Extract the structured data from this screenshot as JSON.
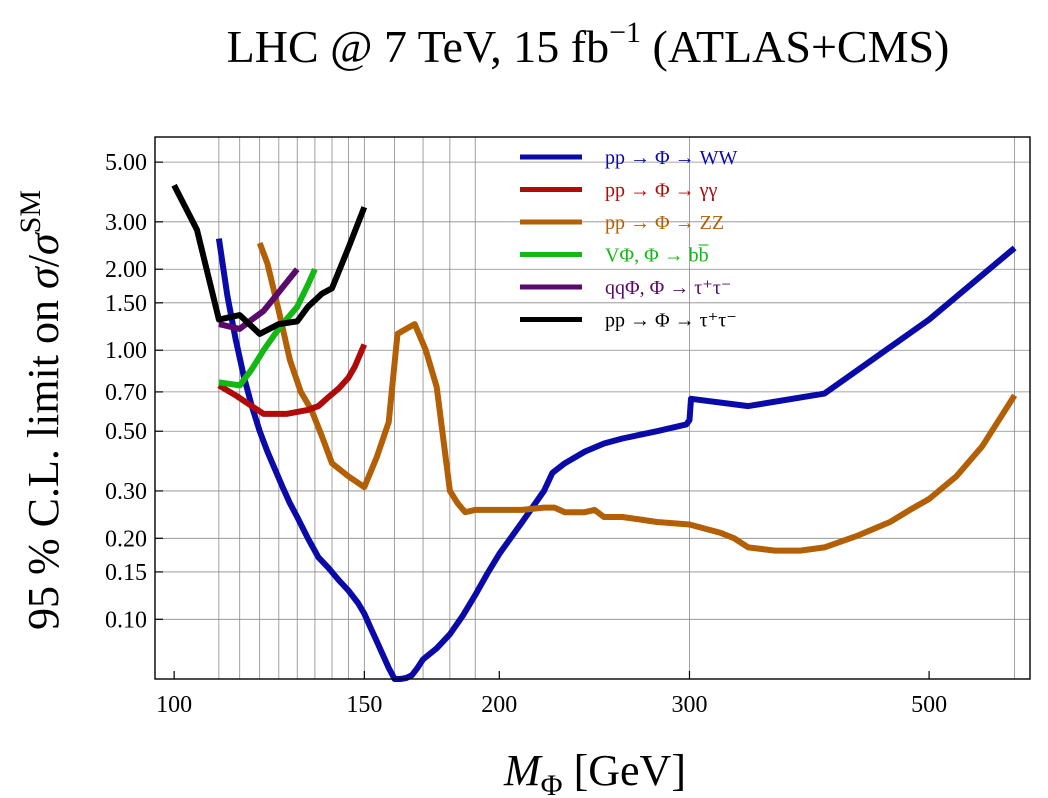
{
  "chart_data": {
    "type": "line",
    "title": "LHC @ 7 TeV, 15 fb⁻¹ (ATLAS+CMS)",
    "xlabel": "MΦ [GeV]",
    "ylabel": "95 % C.L. limit on σ/σSM",
    "x_scale": "log",
    "y_scale": "log",
    "xlim": [
      96,
      620
    ],
    "ylim": [
      0.06,
      6.2
    ],
    "x_ticks": [
      {
        "value": 100,
        "label": "100"
      },
      {
        "value": 150,
        "label": "150"
      },
      {
        "value": 200,
        "label": "200"
      },
      {
        "value": 300,
        "label": "300"
      },
      {
        "value": 500,
        "label": "500"
      }
    ],
    "y_ticks": [
      {
        "value": 5,
        "label": "5.00"
      },
      {
        "value": 3,
        "label": "3.00"
      },
      {
        "value": 2,
        "label": "2.00"
      },
      {
        "value": 1.5,
        "label": "1.50"
      },
      {
        "value": 1,
        "label": "1.00"
      },
      {
        "value": 0.7,
        "label": "0.70"
      },
      {
        "value": 0.5,
        "label": "0.50"
      },
      {
        "value": 0.3,
        "label": "0.30"
      },
      {
        "value": 0.2,
        "label": "0.20"
      },
      {
        "value": 0.15,
        "label": "0.15"
      },
      {
        "value": 0.1,
        "label": "0.10"
      }
    ],
    "grid": true,
    "grid_x": [
      110,
      115,
      120,
      125,
      130,
      135,
      140,
      145,
      150,
      160,
      170,
      180,
      190,
      300,
      600
    ],
    "grid_y": [
      0.1,
      0.15,
      0.2,
      0.3,
      0.5,
      0.7,
      1,
      1.5,
      2,
      3,
      5
    ],
    "legend_position": "top-right",
    "series": [
      {
        "name": "pp → Φ → WW",
        "color": "#0a0aa8",
        "x": [
          110,
          112,
          114,
          116,
          118,
          120,
          122,
          124,
          126,
          128,
          130,
          133,
          136,
          139,
          142,
          145,
          148,
          150,
          152,
          154,
          156,
          158,
          160,
          162,
          164,
          166,
          168,
          170,
          175,
          180,
          185,
          190,
          195,
          200,
          210,
          220,
          224,
          230,
          240,
          250,
          260,
          280,
          298,
          300,
          301,
          340,
          400,
          500,
          600
        ],
        "y": [
          2.6,
          1.6,
          1.1,
          0.8,
          0.62,
          0.5,
          0.42,
          0.36,
          0.31,
          0.27,
          0.24,
          0.2,
          0.17,
          0.155,
          0.14,
          0.128,
          0.115,
          0.105,
          0.093,
          0.083,
          0.074,
          0.066,
          0.06,
          0.06,
          0.0605,
          0.062,
          0.066,
          0.071,
          0.078,
          0.088,
          0.103,
          0.123,
          0.148,
          0.175,
          0.23,
          0.3,
          0.35,
          0.38,
          0.42,
          0.45,
          0.47,
          0.5,
          0.53,
          0.55,
          0.66,
          0.62,
          0.69,
          1.3,
          2.4
        ]
      },
      {
        "name": "pp → Φ → γγ",
        "color": "#b00b0b",
        "x": [
          110,
          114,
          118,
          121,
          124,
          127,
          130,
          133,
          136,
          139,
          142,
          145,
          147,
          150
        ],
        "y": [
          0.74,
          0.68,
          0.62,
          0.58,
          0.58,
          0.58,
          0.59,
          0.6,
          0.62,
          0.67,
          0.72,
          0.79,
          0.87,
          1.05
        ]
      },
      {
        "name": "pp → Φ → ZZ",
        "color": "#b35f05",
        "x": [
          120,
          122,
          125,
          128,
          131,
          134,
          137,
          140,
          145,
          150,
          154,
          158,
          161,
          164,
          167,
          171,
          175,
          180,
          183,
          186,
          190,
          200,
          210,
          220,
          225,
          230,
          240,
          245,
          250,
          260,
          270,
          280,
          300,
          320,
          330,
          340,
          360,
          380,
          400,
          430,
          460,
          480,
          500,
          530,
          560,
          600
        ],
        "y": [
          2.5,
          2.1,
          1.4,
          0.92,
          0.7,
          0.6,
          0.48,
          0.38,
          0.34,
          0.31,
          0.4,
          0.54,
          1.15,
          1.2,
          1.25,
          1.0,
          0.73,
          0.3,
          0.27,
          0.25,
          0.255,
          0.255,
          0.255,
          0.26,
          0.26,
          0.25,
          0.25,
          0.255,
          0.24,
          0.24,
          0.235,
          0.23,
          0.225,
          0.21,
          0.2,
          0.185,
          0.18,
          0.18,
          0.185,
          0.205,
          0.23,
          0.255,
          0.28,
          0.34,
          0.44,
          0.68
        ]
      },
      {
        "name": "VΦ, Φ → bb̅",
        "color": "#14b814",
        "x": [
          110,
          115,
          118,
          121,
          124,
          127,
          130,
          133,
          135
        ],
        "y": [
          0.76,
          0.74,
          0.85,
          1.0,
          1.15,
          1.3,
          1.45,
          1.75,
          2.0
        ]
      },
      {
        "name": "qqΦ, Φ → τ⁺τ⁻",
        "color": "#5a0a6a",
        "x": [
          110,
          115,
          118,
          121,
          124,
          127,
          130
        ],
        "y": [
          1.25,
          1.2,
          1.3,
          1.4,
          1.58,
          1.78,
          2.0
        ]
      },
      {
        "name": "pp → Φ → τ⁺τ⁻",
        "color": "#000000",
        "x": [
          100,
          105,
          110,
          115,
          120,
          125,
          130,
          133,
          137,
          140,
          145,
          150
        ],
        "y": [
          4.1,
          2.8,
          1.3,
          1.35,
          1.15,
          1.25,
          1.28,
          1.45,
          1.62,
          1.7,
          2.4,
          3.4
        ]
      }
    ]
  }
}
